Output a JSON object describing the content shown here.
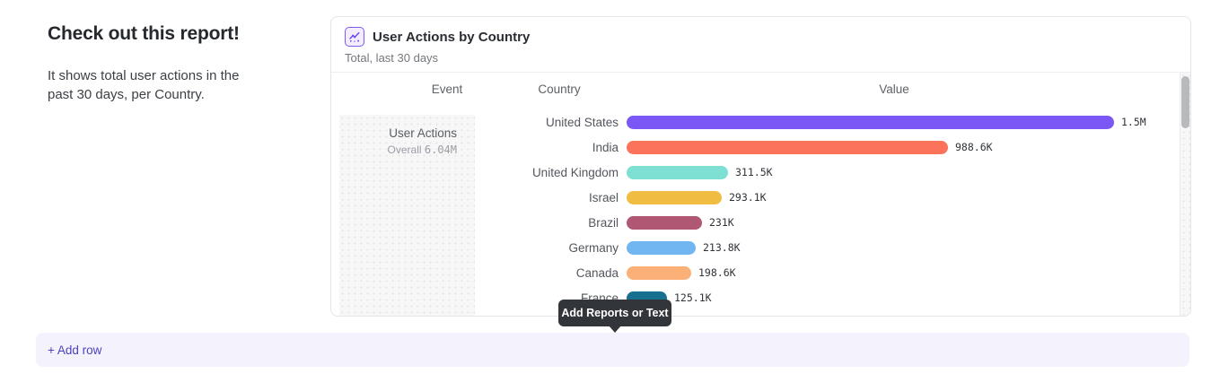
{
  "page": {
    "intro": {
      "heading": "Check out this report!",
      "body": "It shows total user actions in the past 30 days, per Country."
    },
    "tooltip": {
      "text": "Add Reports or Text"
    },
    "add_row": {
      "label": "+ Add row"
    }
  },
  "report_card": {
    "title": "User Actions by Country",
    "subtitle": "Total, last 30 days",
    "icon": "line-chart-icon",
    "columns": [
      "Event",
      "Country",
      "Value"
    ],
    "event": {
      "name": "User Actions",
      "overall_label": "Overall",
      "overall_value": "6.04M"
    }
  },
  "chart_data": {
    "type": "bar",
    "orientation": "horizontal",
    "title": "User Actions by Country",
    "subtitle": "Total, last 30 days",
    "event": "User Actions",
    "overall_total": "6.04M",
    "categories": [
      "United States",
      "India",
      "United Kingdom",
      "Israel",
      "Brazil",
      "Germany",
      "Canada",
      "France"
    ],
    "values": [
      1500000,
      988600,
      311500,
      293100,
      231000,
      213800,
      198600,
      125100
    ],
    "value_labels": [
      "1.5M",
      "988.6K",
      "311.5K",
      "293.1K",
      "231K",
      "213.8K",
      "198.6K",
      "125.1K"
    ],
    "colors": [
      "#7b58f6",
      "#fa735a",
      "#7de0d3",
      "#f0bd42",
      "#b05773",
      "#71b6f0",
      "#fbb077",
      "#17708f"
    ],
    "xlim": [
      0,
      1500000
    ],
    "grid": false,
    "legend": false
  },
  "ui_colors": {
    "accent": "#7b58f6",
    "add_row_text": "#4b42be",
    "add_row_bg": "#f4f2fc",
    "tooltip_bg": "#32363b",
    "card_border": "#e4e5e8"
  }
}
